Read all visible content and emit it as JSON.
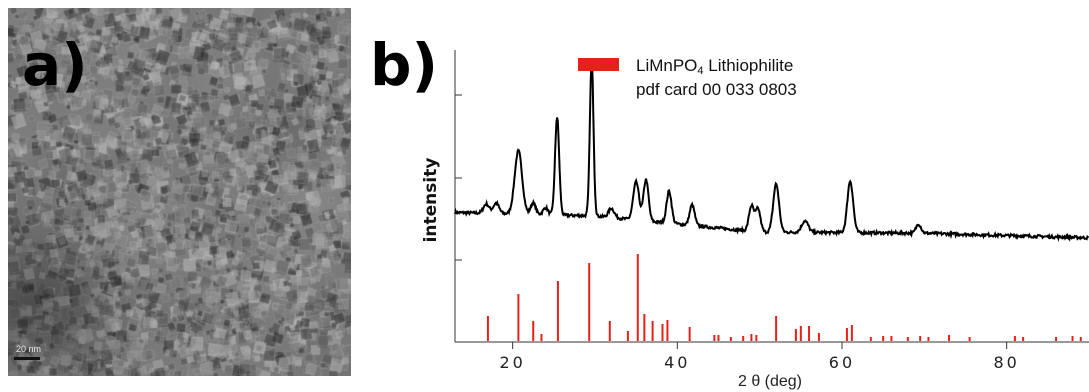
{
  "panels": {
    "a_label": "a)",
    "b_label": "b)"
  },
  "tem_image": {
    "description_icon": "tem-micrograph",
    "scale_label": "20 nm"
  },
  "chart_data": {
    "type": "line",
    "xlabel": "2 θ (deg)",
    "ylabel": "intensity",
    "xlim": [
      13,
      90
    ],
    "xticks": [
      20,
      40,
      60,
      80
    ],
    "grid": false,
    "legend": {
      "placement": "top",
      "color": "#e8201a",
      "formula_main": "LiMnPO",
      "formula_sub": "4",
      "formula_rest": " Lithiophilite",
      "line2": "pdf card 00 033 0803"
    },
    "series": [
      {
        "style": "line",
        "color": "#000000",
        "baseline": [
          [
            13,
            0.5
          ],
          [
            30,
            0.47
          ],
          [
            50,
            0.33
          ],
          [
            70,
            0.32
          ],
          [
            90,
            0.28
          ]
        ],
        "peaks": [
          [
            16.8,
            0.08,
            0.35
          ],
          [
            18.0,
            0.09,
            0.35
          ],
          [
            20.7,
            0.55,
            0.45
          ],
          [
            22.5,
            0.1,
            0.3
          ],
          [
            24.0,
            0.06,
            0.3
          ],
          [
            25.4,
            0.85,
            0.25
          ],
          [
            29.6,
            1.35,
            0.22
          ],
          [
            32.0,
            0.08,
            0.35
          ],
          [
            35.0,
            0.33,
            0.35
          ],
          [
            36.2,
            0.36,
            0.3
          ],
          [
            39.0,
            0.28,
            0.3
          ],
          [
            41.8,
            0.18,
            0.3
          ],
          [
            49.0,
            0.22,
            0.3
          ],
          [
            49.8,
            0.2,
            0.3
          ],
          [
            52.0,
            0.42,
            0.35
          ],
          [
            55.5,
            0.1,
            0.4
          ],
          [
            61.0,
            0.45,
            0.35
          ],
          [
            69.3,
            0.08,
            0.3
          ]
        ]
      },
      {
        "style": "sticks",
        "color": "#e8201a",
        "peaks": [
          [
            17.0,
            0.25
          ],
          [
            20.7,
            0.47
          ],
          [
            22.5,
            0.2
          ],
          [
            23.5,
            0.07
          ],
          [
            25.5,
            0.6
          ],
          [
            29.3,
            0.78
          ],
          [
            31.8,
            0.2
          ],
          [
            34.0,
            0.1
          ],
          [
            35.2,
            0.87
          ],
          [
            36.0,
            0.27
          ],
          [
            37.0,
            0.2
          ],
          [
            38.2,
            0.17
          ],
          [
            38.8,
            0.21
          ],
          [
            41.5,
            0.14
          ],
          [
            44.5,
            0.06
          ],
          [
            45.0,
            0.06
          ],
          [
            46.5,
            0.04
          ],
          [
            48.0,
            0.05
          ],
          [
            49.0,
            0.07
          ],
          [
            49.6,
            0.06
          ],
          [
            52.0,
            0.25
          ],
          [
            54.4,
            0.12
          ],
          [
            55.0,
            0.15
          ],
          [
            56.0,
            0.15
          ],
          [
            57.2,
            0.08
          ],
          [
            60.6,
            0.13
          ],
          [
            61.2,
            0.16
          ],
          [
            63.5,
            0.04
          ],
          [
            65.0,
            0.05
          ],
          [
            66.0,
            0.05
          ],
          [
            68.0,
            0.04
          ],
          [
            69.5,
            0.05
          ],
          [
            70.5,
            0.04
          ],
          [
            73.0,
            0.06
          ],
          [
            75.5,
            0.04
          ],
          [
            81.0,
            0.05
          ],
          [
            82.0,
            0.04
          ],
          [
            86.0,
            0.04
          ],
          [
            88.0,
            0.05
          ],
          [
            89.0,
            0.04
          ]
        ]
      }
    ]
  }
}
